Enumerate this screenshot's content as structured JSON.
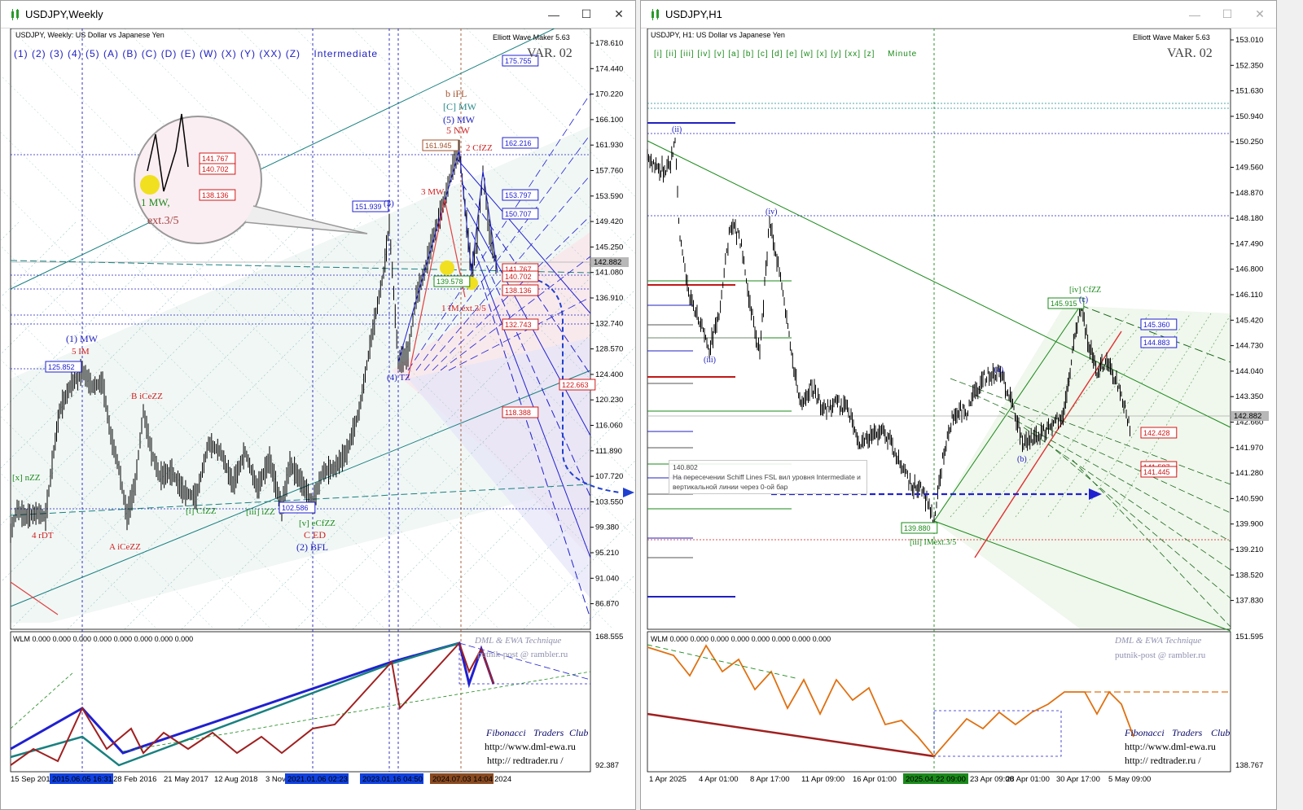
{
  "left": {
    "window_title": "USDJPY,Weekly",
    "header": "USDJPY, Weekly:  US Dollar vs Japanese Yen",
    "indicator": "Elliott Wave Maker 5.63",
    "variant": "VAR. 02",
    "wave_buttons": [
      "(1)",
      "(2)",
      "(3)",
      "(4)",
      "(5)",
      "(A)",
      "(B)",
      "(C)",
      "(D)",
      "(E)",
      "(W)",
      "(X)",
      "(Y)",
      "(XX)",
      "(Z)"
    ],
    "degree": "Intermediate",
    "price_axis": [
      "178.610",
      "174.440",
      "170.220",
      "166.100",
      "161.930",
      "157.760",
      "153.590",
      "149.420",
      "145.250",
      "141.080",
      "136.910",
      "132.740",
      "128.570",
      "124.400",
      "120.230",
      "116.060",
      "111.890",
      "107.720",
      "103.550",
      "99.380",
      "95.210",
      "91.040",
      "86.870"
    ],
    "current_price": "142.882",
    "sub_axis": [
      "168.555",
      "92.387"
    ],
    "time_axis": [
      "15 Sep 2013",
      "28 Feb 2016",
      "21 May 2017",
      "12 Aug 2018",
      "3 Nov",
      "2024"
    ],
    "time_highlights": [
      {
        "text": "2015.06.05 16:31",
        "color": "#1040e0"
      },
      {
        "text": "2021.01.06 02:23",
        "color": "#1040e0"
      },
      {
        "text": "2023.01.16 04:50",
        "color": "#1040e0"
      },
      {
        "text": "2024.07.03 14:04",
        "color": "#8a4a20"
      }
    ],
    "price_boxes_blue": [
      "175.755",
      "162.216",
      "153.797",
      "150.707",
      "151.939",
      "125.852",
      "102.586"
    ],
    "price_boxes_red": [
      "141.767",
      "140.702",
      "138.136",
      "132.743",
      "122.663",
      "118.388"
    ],
    "price_box_brown": "161.945",
    "price_box_green": "139.578",
    "magnifier": {
      "boxes": [
        "141.767",
        "140.702",
        "138.136"
      ],
      "labels": [
        "1 MW,",
        "ext.3/5"
      ]
    },
    "wave_labels": [
      {
        "text": "b iFL",
        "color": "#a0522d"
      },
      {
        "text": "[C] MW",
        "color": "#2a8a8a"
      },
      {
        "text": "(5) MW",
        "color": "#2020c0"
      },
      {
        "text": "5 NW",
        "color": "#d02020"
      },
      {
        "text": "2 CfZZ",
        "color": "#d02020"
      },
      {
        "text": "3 MW",
        "color": "#d02020"
      },
      {
        "text": "(3)",
        "color": "#2020c0"
      },
      {
        "text": "(1) MW",
        "color": "#2020c0"
      },
      {
        "text": "5 IM",
        "color": "#d02020"
      },
      {
        "text": "B iCeZZ",
        "color": "#d02020"
      },
      {
        "text": "A iCeZZ",
        "color": "#d02020"
      },
      {
        "text": "4 rDT",
        "color": "#d02020"
      },
      {
        "text": "C ED",
        "color": "#d02020"
      },
      {
        "text": "(2) BFL",
        "color": "#2020c0"
      },
      {
        "text": "(4) TZ",
        "color": "#2020c0"
      },
      {
        "text": "1 IM ext.3/5",
        "color": "#d02020"
      },
      {
        "text": "[i] CfZZ",
        "color": "#1a8a1a"
      },
      {
        "text": "[iii] iZZ",
        "color": "#1a8a1a"
      },
      {
        "text": "[x] nZZ",
        "color": "#1a8a1a"
      },
      {
        "text": "[v] eCfZZ",
        "color": "#1a8a1a"
      }
    ],
    "sub_header": "WLM 0.000 0.000 0.000 0.000 0.000 0.000 0.000 0.000",
    "brand_title": "DML & EWA Technique",
    "brand_email": "putnik-post @ rambler.ru",
    "footer_club": [
      "Fibonacci",
      "Traders",
      "Club"
    ],
    "footer_links": [
      "http://www.dml-ewa.ru",
      "http:// redtrader.ru /"
    ]
  },
  "right": {
    "window_title": "USDJPY,H1",
    "header": "USDJPY, H1:  US Dollar vs Japanese Yen",
    "indicator": "Elliott Wave Maker 5.63",
    "variant": "VAR. 02",
    "wave_buttons": [
      "[i]",
      "[ii]",
      "[iii]",
      "[iv]",
      "[v]",
      "[a]",
      "[b]",
      "[c]",
      "[d]",
      "[e]",
      "[w]",
      "[x]",
      "[y]",
      "[xx]",
      "[z]"
    ],
    "degree": "Minute",
    "price_axis": [
      "153.010",
      "152.350",
      "151.630",
      "150.940",
      "150.250",
      "149.560",
      "148.870",
      "148.180",
      "147.490",
      "146.800",
      "146.110",
      "145.420",
      "144.730",
      "144.040",
      "143.350",
      "142.660",
      "141.970",
      "141.280",
      "140.590",
      "139.900",
      "139.210",
      "138.520",
      "137.830"
    ],
    "current_price": "142.882",
    "sub_axis": [
      "151.595",
      "138.767"
    ],
    "time_axis": [
      "1 Apr 2025",
      "4 Apr 01:00",
      "8 Apr 17:00",
      "11 Apr 09:00",
      "16 Apr 01:00",
      "23 Apr 09:00",
      "28 Apr 01:00",
      "30 Apr 17:00",
      "5 May 09:00"
    ],
    "time_highlight": {
      "text": "2025.04.22 09:00",
      "color": "#1a8a1a"
    },
    "price_boxes": [
      "145.360",
      "144.883",
      "142.428",
      "141.587",
      "141.445"
    ],
    "price_box_green": [
      "145.915",
      "139.880"
    ],
    "wave_labels": [
      {
        "text": "(ii)",
        "color": "#2020c0"
      },
      {
        "text": "(iii)",
        "color": "#2020c0"
      },
      {
        "text": "(iv)",
        "color": "#2020c0"
      },
      {
        "text": "[iv] CfZZ",
        "color": "#1a8a1a"
      },
      {
        "text": "(a)",
        "color": "#2020c0"
      },
      {
        "text": "(b)",
        "color": "#2020c0"
      },
      {
        "text": "(c)",
        "color": "#2020c0"
      },
      {
        "text": "[iii] IMext.3/5",
        "color": "#1a8a1a"
      }
    ],
    "note": {
      "price": "140.802",
      "line1": "На пересечении Schiff Lines FSL вил уровня Intermediate и",
      "line2": "вертикальной линии через 0-ой бар"
    },
    "sub_header": "WLM 0.000 0.000 0.000 0.000 0.000 0.000 0.000 0.000",
    "brand_title": "DML & EWA Technique",
    "brand_email": "putnik-post @ rambler.ru",
    "footer_club": [
      "Fibonacci",
      "Traders",
      "Club"
    ],
    "footer_links": [
      "http://www.dml-ewa.ru",
      "http:// redtrader.ru /"
    ]
  },
  "colors": {
    "blue": "#1a1ad0",
    "red": "#d01818",
    "green": "#1a8a1a",
    "teal": "#1a8080",
    "highlight": "#f0e020",
    "orange": "#e07010"
  },
  "icons": [
    "chart-icon",
    "minimize-icon",
    "maximize-icon",
    "close-icon"
  ]
}
